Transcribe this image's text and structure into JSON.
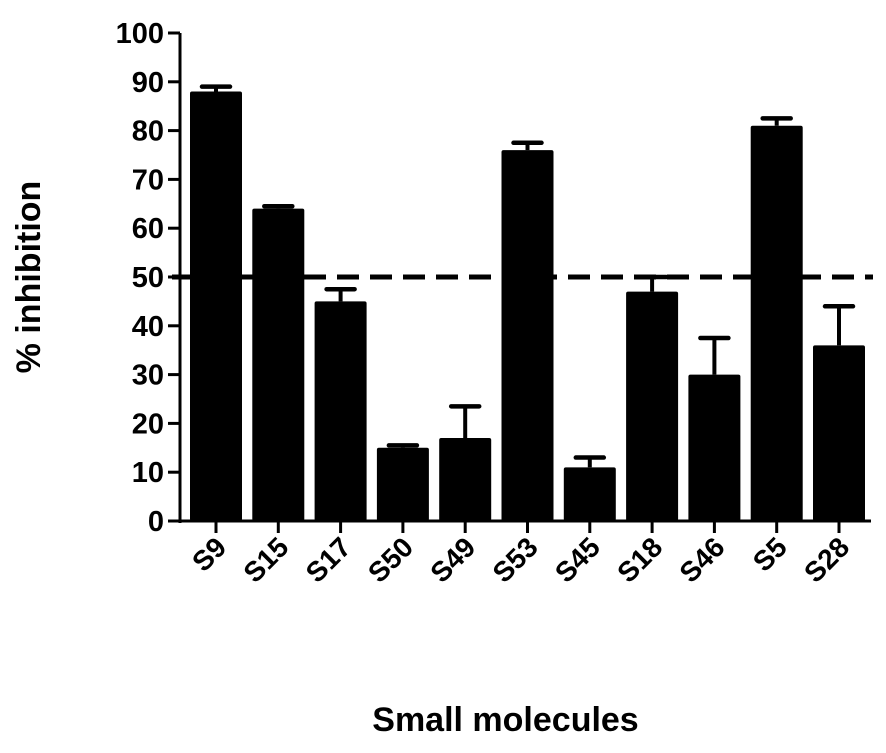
{
  "chart_data": {
    "type": "bar",
    "title": "",
    "xlabel": "Small molecules",
    "ylabel": "% inhibition",
    "categories": [
      "S9",
      "S15",
      "S17",
      "S50",
      "S49",
      "S53",
      "S45",
      "S18",
      "S46",
      "S5",
      "S28"
    ],
    "values": [
      88,
      64,
      45,
      15,
      17,
      76,
      11,
      47,
      30,
      81,
      36
    ],
    "errors": [
      1,
      0.5,
      2.5,
      0.5,
      6.5,
      1.5,
      2,
      3,
      7.5,
      1.5,
      8
    ],
    "yticks": [
      "0",
      "10",
      "20",
      "30",
      "40",
      "50",
      "60",
      "70",
      "80",
      "90",
      "100"
    ],
    "ylim": [
      0,
      100
    ],
    "threshold": 50,
    "threshold_style": "dashed",
    "grid": false,
    "legend": "none",
    "bar_color": "#000000"
  }
}
